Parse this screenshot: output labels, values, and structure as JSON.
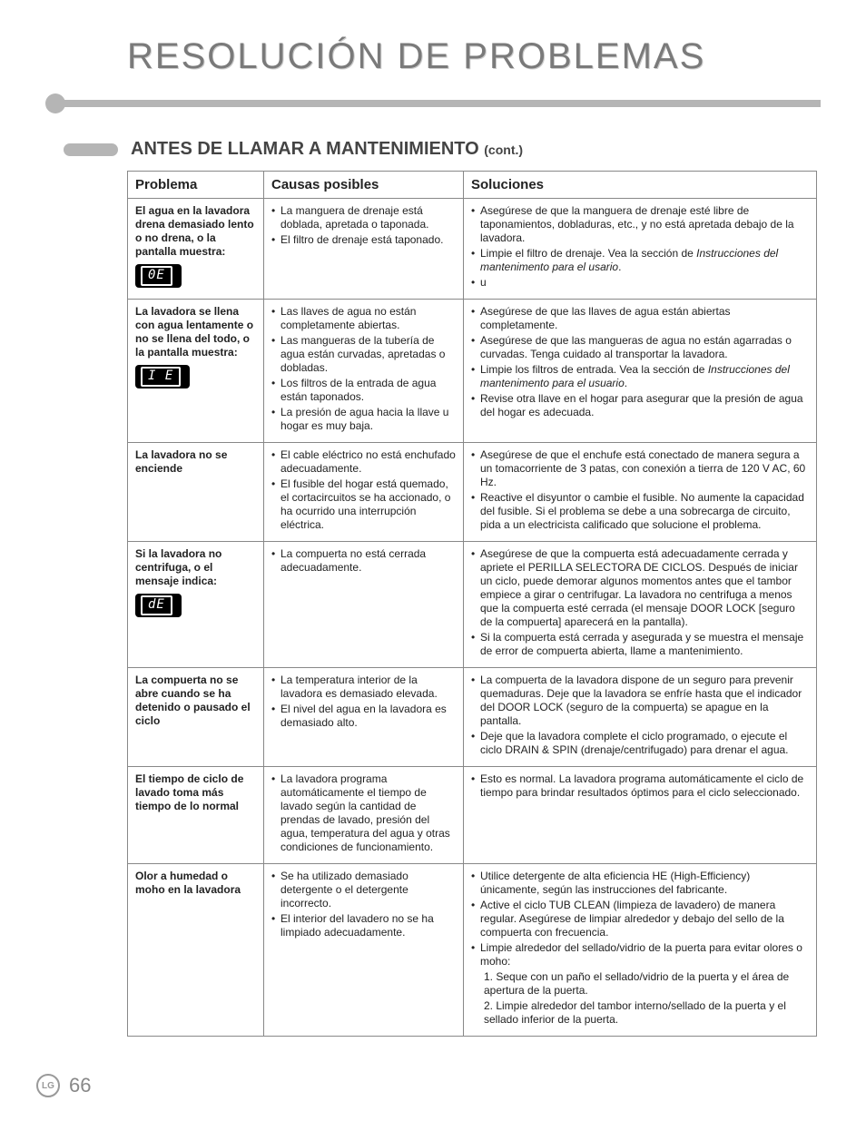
{
  "title": "RESOLUCIÓN DE PROBLEMAS",
  "section": {
    "heading": "ANTES DE LLAMAR A MANTENIMIENTO",
    "cont": "(cont.)"
  },
  "headers": {
    "problema": "Problema",
    "causas": "Causas posibles",
    "soluciones": "Soluciones"
  },
  "rows": [
    {
      "problem": "El agua en la lavadora drena demasiado lento o no drena, o la pantalla muestra:",
      "badge": "0E",
      "causes": [
        "La manguera de drenaje está doblada, apretada o taponada.",
        "El filtro de drenaje está taponado."
      ],
      "solutions": [
        "Asegúrese de que la manguera de drenaje esté libre de taponamientos, dobladuras, etc., y no está apretada debajo de la lavadora.",
        "Limpie el filtro de drenaje. Vea la sección de <em class='it'>Instrucciones del mantenimento para el usario</em>.",
        "u"
      ]
    },
    {
      "problem": "La lavadora se llena con agua lentamente o no se llena del todo, o la pantalla muestra:",
      "badge": "I E",
      "causes": [
        "Las llaves de agua no están completamente abiertas.",
        "Las mangueras de la tubería de agua están curvadas, apretadas o dobladas.",
        "Los filtros de la entrada de agua están taponados.",
        "La presión de agua hacia la llave u hogar es muy baja."
      ],
      "solutions": [
        "Asegúrese de que las llaves de agua están abiertas completamente.",
        "Asegúrese de que las mangueras de agua no están agarradas o curvadas. Tenga cuidado al transportar la lavadora.",
        "Limpie los filtros de entrada. Vea la sección de <em class='it'>Instrucciones del mantenimento para el usuario</em>.",
        "Revise otra llave en el hogar para asegurar que la presión de agua del hogar es adecuada."
      ]
    },
    {
      "problem": "La lavadora no se enciende",
      "causes": [
        "El cable eléctrico no está enchufado adecuadamente.",
        "El fusible del hogar está quemado, el cortacircuitos se ha accionado, o ha ocurrido una interrupción eléctrica."
      ],
      "solutions": [
        "Asegúrese de que el enchufe está conectado de manera segura a un tomacorriente de 3 patas, con conexión a tierra de 120 V AC, 60 Hz.",
        "Reactive el disyuntor o cambie el fusible. No aumente la capacidad del fusible. Si el problema se debe a una sobrecarga de circuito, pida a un electricista calificado que solucione el problema."
      ]
    },
    {
      "problem": "Si la lavadora no centrifuga, o el mensaje indica:",
      "badge": "dE",
      "causes": [
        "La compuerta no está cerrada adecuadamente."
      ],
      "solutions": [
        "Asegúrese de que la compuerta está adecuadamente cerrada y apriete el PERILLA SELECTORA DE CICLOS. Después de iniciar un ciclo, puede demorar algunos momentos antes que el tambor empiece a girar o centrifugar. La lavadora no centrifuga a menos que la compuerta esté cerrada (el mensaje DOOR LOCK [seguro de la compuerta] aparecerá en la pantalla).",
        "Si la compuerta está cerrada y asegurada y se muestra el mensaje de error de compuerta abierta, llame a mantenimiento."
      ]
    },
    {
      "problem": "La compuerta no se abre cuando se ha detenido o pausado el ciclo",
      "causes": [
        "La temperatura interior de la lavadora es demasiado elevada.",
        "El nivel del agua en la lavadora es demasiado alto."
      ],
      "solutions": [
        "La compuerta de la lavadora dispone de un seguro para prevenir quemaduras. Deje que la lavadora se enfríe hasta que el indicador del DOOR LOCK (seguro de la compuerta) se apague en la pantalla.",
        "Deje que la lavadora complete el ciclo programado, o ejecute el ciclo DRAIN & SPIN (drenaje/centrifugado) para drenar el agua."
      ]
    },
    {
      "problem": "El tiempo de ciclo de lavado toma más tiempo de lo normal",
      "causes": [
        "La lavadora programa automáticamente el tiempo de lavado según la cantidad de prendas de lavado, presión del agua, temperatura del agua y otras condiciones de funcionamiento."
      ],
      "solutions": [
        "Esto es normal. La lavadora programa automáticamente el ciclo de tiempo para brindar resultados óptimos para el ciclo seleccionado."
      ]
    },
    {
      "problem": "Olor a humedad o moho en la lavadora",
      "causes": [
        "Se ha utilizado demasiado detergente o el detergente incorrecto.",
        "El interior del lavadero no se ha limpiado adecuadamente."
      ],
      "solutions": [
        "Utilice detergente de alta eficiencia HE (High-Efficiency) únicamente, según las instrucciones del fabricante.",
        "Active el ciclo TUB CLEAN (limpieza de lavadero) de manera regular. Asegúrese de limpiar alrededor y debajo del sello de la compuerta con frecuencia.",
        "Limpie alrededor del sellado/vidrio de la puerta para evitar olores o moho:"
      ],
      "numbered": [
        "1. Seque con un paño el sellado/vidrio de la puerta y el área de apertura de la puerta.",
        "2. Limpie alrededor del tambor interno/sellado de la puerta y el sellado inferior de la puerta."
      ]
    }
  ],
  "page_number": "66",
  "logo_text": "LG",
  "colors": {
    "accent": "#b5b5b5",
    "text": "#222222",
    "title": "#7a7a7a"
  }
}
